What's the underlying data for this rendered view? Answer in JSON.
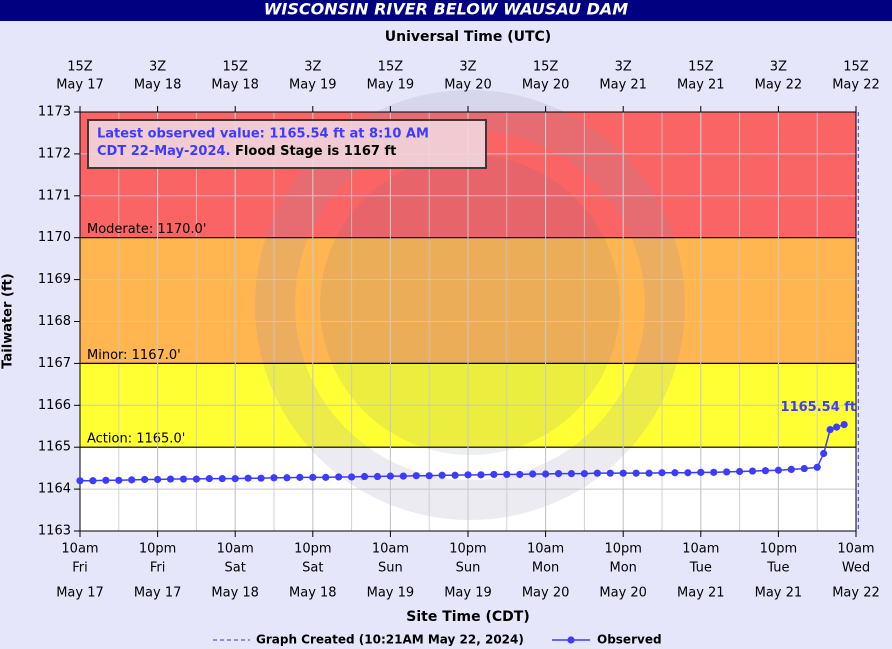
{
  "chart_data": {
    "type": "line",
    "title": "WISCONSIN RIVER BELOW WAUSAU DAM",
    "top_axis_title": "Universal Time (UTC)",
    "xlabel": "Site Time (CDT)",
    "ylabel": "Tailwater (ft)",
    "xlim": [
      "May 17 10:00",
      "May 22 10:00"
    ],
    "ylim": [
      1163,
      1173
    ],
    "yticks": [
      1163,
      1164,
      1165,
      1166,
      1167,
      1168,
      1169,
      1170,
      1171,
      1172,
      1173
    ],
    "grid": true,
    "xticks": [
      {
        "value": "May 17 10:00",
        "label": "10am",
        "day": "Fri",
        "date": "May 17"
      },
      {
        "value": "May 17 22:00",
        "label": "10pm",
        "day": "Fri",
        "date": "May 17"
      },
      {
        "value": "May 18 10:00",
        "label": "10am",
        "day": "Sat",
        "date": "May 18"
      },
      {
        "value": "May 18 22:00",
        "label": "10pm",
        "day": "Sat",
        "date": "May 18"
      },
      {
        "value": "May 19 10:00",
        "label": "10am",
        "day": "Sun",
        "date": "May 19"
      },
      {
        "value": "May 19 22:00",
        "label": "10pm",
        "day": "Sun",
        "date": "May 19"
      },
      {
        "value": "May 20 10:00",
        "label": "10am",
        "day": "Mon",
        "date": "May 20"
      },
      {
        "value": "May 20 22:00",
        "label": "10pm",
        "day": "Mon",
        "date": "May 20"
      },
      {
        "value": "May 21 10:00",
        "label": "10am",
        "day": "Tue",
        "date": "May 21"
      },
      {
        "value": "May 21 22:00",
        "label": "10pm",
        "day": "Tue",
        "date": "May 21"
      },
      {
        "value": "May 22 10:00",
        "label": "10am",
        "day": "Wed",
        "date": "May 22"
      }
    ],
    "x2ticks": [
      {
        "value": "May 17 10:00",
        "label": "15Z",
        "date": "May 17"
      },
      {
        "value": "May 17 22:00",
        "label": "3Z",
        "date": "May 18"
      },
      {
        "value": "May 18 10:00",
        "label": "15Z",
        "date": "May 18"
      },
      {
        "value": "May 18 22:00",
        "label": "3Z",
        "date": "May 19"
      },
      {
        "value": "May 19 10:00",
        "label": "15Z",
        "date": "May 19"
      },
      {
        "value": "May 19 22:00",
        "label": "3Z",
        "date": "May 20"
      },
      {
        "value": "May 20 10:00",
        "label": "15Z",
        "date": "May 20"
      },
      {
        "value": "May 20 22:00",
        "label": "3Z",
        "date": "May 21"
      },
      {
        "value": "May 21 10:00",
        "label": "15Z",
        "date": "May 21"
      },
      {
        "value": "May 21 22:00",
        "label": "3Z",
        "date": "May 22"
      },
      {
        "value": "May 22 10:00",
        "label": "15Z",
        "date": "May 22"
      }
    ],
    "thresholds": [
      {
        "label": "Action: 1165.0'",
        "value": 1165,
        "color": "#ffff33"
      },
      {
        "label": "Minor: 1167.0'",
        "value": 1167,
        "color": "#ffb550"
      },
      {
        "label": "Moderate: 1170.0'",
        "value": 1170,
        "color": "#fa6464"
      }
    ],
    "annotation": {
      "lines": [
        "Latest observed value: 1165.54 ft at 8:10 AM",
        "CDT 22-May-2024."
      ],
      "flood_stage": "Flood Stage is 1167 ft"
    },
    "graph_created": {
      "label": "Graph Created (10:21AM May 22, 2024)",
      "x": "May 22 10:21",
      "color": "#3333ff"
    },
    "series": [
      {
        "name": "Observed",
        "color": "#3c3cff",
        "last_value_label": "1165.54 ft",
        "x": [
          "May 17 10:00",
          "May 17 12:00",
          "May 17 14:00",
          "May 17 16:00",
          "May 17 18:00",
          "May 17 20:00",
          "May 17 22:00",
          "May 18 00:00",
          "May 18 02:00",
          "May 18 04:00",
          "May 18 06:00",
          "May 18 08:00",
          "May 18 10:00",
          "May 18 12:00",
          "May 18 14:00",
          "May 18 16:00",
          "May 18 18:00",
          "May 18 20:00",
          "May 18 22:00",
          "May 19 00:00",
          "May 19 02:00",
          "May 19 04:00",
          "May 19 06:00",
          "May 19 08:00",
          "May 19 10:00",
          "May 19 12:00",
          "May 19 14:00",
          "May 19 16:00",
          "May 19 18:00",
          "May 19 20:00",
          "May 19 22:00",
          "May 20 00:00",
          "May 20 02:00",
          "May 20 04:00",
          "May 20 06:00",
          "May 20 08:00",
          "May 20 10:00",
          "May 20 12:00",
          "May 20 14:00",
          "May 20 16:00",
          "May 20 18:00",
          "May 20 20:00",
          "May 20 22:00",
          "May 21 00:00",
          "May 21 02:00",
          "May 21 04:00",
          "May 21 06:00",
          "May 21 08:00",
          "May 21 10:00",
          "May 21 12:00",
          "May 21 14:00",
          "May 21 16:00",
          "May 21 18:00",
          "May 21 20:00",
          "May 21 22:00",
          "May 22 00:00",
          "May 22 02:00",
          "May 22 04:00",
          "May 22 05:00",
          "May 22 06:00",
          "May 22 07:00",
          "May 22 08:10"
        ],
        "values": [
          1164.2,
          1164.2,
          1164.21,
          1164.21,
          1164.22,
          1164.23,
          1164.23,
          1164.24,
          1164.24,
          1164.24,
          1164.25,
          1164.25,
          1164.25,
          1164.26,
          1164.26,
          1164.27,
          1164.27,
          1164.28,
          1164.28,
          1164.28,
          1164.29,
          1164.29,
          1164.3,
          1164.3,
          1164.31,
          1164.31,
          1164.32,
          1164.32,
          1164.33,
          1164.33,
          1164.34,
          1164.34,
          1164.35,
          1164.35,
          1164.35,
          1164.36,
          1164.36,
          1164.37,
          1164.37,
          1164.37,
          1164.38,
          1164.38,
          1164.38,
          1164.38,
          1164.38,
          1164.39,
          1164.39,
          1164.39,
          1164.4,
          1164.4,
          1164.41,
          1164.42,
          1164.43,
          1164.44,
          1164.45,
          1164.47,
          1164.49,
          1164.52,
          1164.85,
          1165.42,
          1165.48,
          1165.54
        ]
      }
    ]
  }
}
